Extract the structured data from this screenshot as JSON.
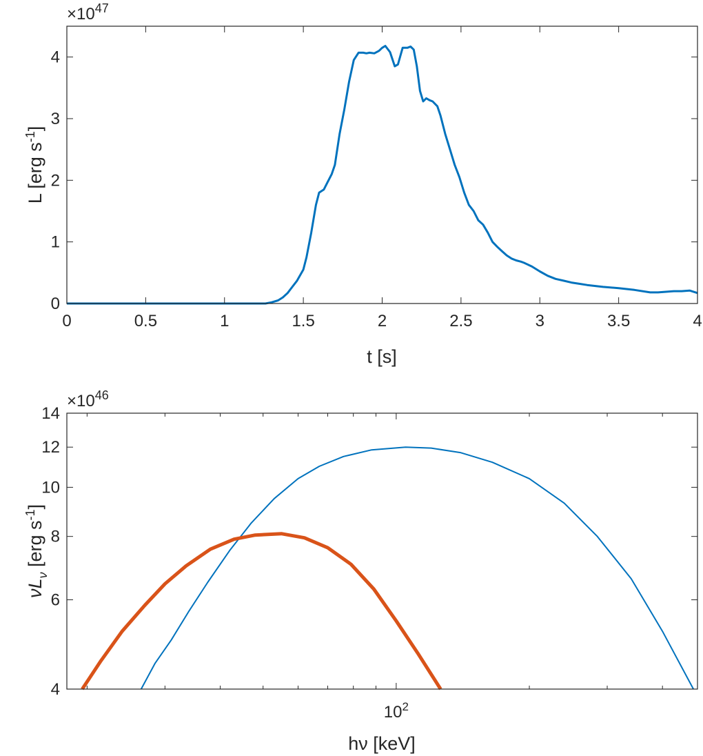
{
  "chart_data": [
    {
      "type": "line",
      "xlabel": "t [s]",
      "ylabel": "L [erg s",
      "ylabel_sup": "-1",
      "ylabel_end": "]",
      "exponent_base": "×10",
      "exponent_power": "47",
      "xlim": [
        0,
        4
      ],
      "ylim": [
        0,
        4.5
      ],
      "x_ticks": [
        0,
        0.5,
        1,
        1.5,
        2,
        2.5,
        3,
        3.5,
        4
      ],
      "x_tick_labels": [
        "0",
        "0.5",
        "1",
        "1.5",
        "2",
        "2.5",
        "3",
        "3.5",
        "4"
      ],
      "y_ticks": [
        0,
        1,
        2,
        3,
        4
      ],
      "y_tick_labels": [
        "0",
        "1",
        "2",
        "3",
        "4"
      ],
      "grid": false,
      "series": [
        {
          "color": "#0072BD",
          "x": [
            0,
            0.5,
            1.0,
            1.2,
            1.26,
            1.3,
            1.34,
            1.37,
            1.4,
            1.43,
            1.46,
            1.5,
            1.52,
            1.55,
            1.58,
            1.6,
            1.63,
            1.65,
            1.68,
            1.7,
            1.73,
            1.76,
            1.79,
            1.82,
            1.85,
            1.88,
            1.9,
            1.92,
            1.95,
            1.98,
            2.0,
            2.02,
            2.05,
            2.08,
            2.1,
            2.13,
            2.16,
            2.18,
            2.2,
            2.22,
            2.24,
            2.26,
            2.28,
            2.3,
            2.32,
            2.35,
            2.37,
            2.4,
            2.43,
            2.46,
            2.49,
            2.52,
            2.55,
            2.58,
            2.61,
            2.64,
            2.67,
            2.7,
            2.73,
            2.76,
            2.79,
            2.82,
            2.85,
            2.88,
            2.9,
            2.95,
            3.0,
            3.05,
            3.1,
            3.15,
            3.2,
            3.25,
            3.3,
            3.4,
            3.5,
            3.6,
            3.7,
            3.75,
            3.8,
            3.85,
            3.9,
            3.95,
            4.0
          ],
          "y": [
            0,
            0,
            0,
            0,
            0,
            0.02,
            0.05,
            0.1,
            0.17,
            0.27,
            0.37,
            0.55,
            0.75,
            1.15,
            1.6,
            1.8,
            1.85,
            1.95,
            2.1,
            2.25,
            2.75,
            3.15,
            3.6,
            3.95,
            4.07,
            4.07,
            4.06,
            4.07,
            4.06,
            4.1,
            4.15,
            4.18,
            4.08,
            3.85,
            3.88,
            4.15,
            4.15,
            4.17,
            4.12,
            3.85,
            3.45,
            3.28,
            3.33,
            3.3,
            3.28,
            3.2,
            3.05,
            2.75,
            2.5,
            2.25,
            2.05,
            1.8,
            1.6,
            1.5,
            1.35,
            1.28,
            1.15,
            1.0,
            0.92,
            0.85,
            0.78,
            0.73,
            0.7,
            0.68,
            0.66,
            0.6,
            0.52,
            0.45,
            0.4,
            0.37,
            0.34,
            0.32,
            0.3,
            0.27,
            0.25,
            0.22,
            0.18,
            0.18,
            0.19,
            0.2,
            0.2,
            0.21,
            0.17
          ]
        }
      ]
    },
    {
      "type": "line",
      "xlabel": "hν [keV]",
      "ylabel": "νL",
      "ylabel_sub": "ν",
      "ylabel_mid": " [erg s",
      "ylabel_sup": "-1",
      "ylabel_end": "]",
      "exponent_base": "×10",
      "exponent_power": "46",
      "x_scale": "log",
      "y_scale": "log",
      "xlim": [
        18,
        480
      ],
      "ylim": [
        4,
        14
      ],
      "x_tick_base": "10",
      "x_tick_power": "2",
      "x_major_tick": 100,
      "x_minor_ticks": [
        20,
        30,
        40,
        50,
        60,
        70,
        80,
        90,
        200,
        300,
        400
      ],
      "y_ticks": [
        4,
        6,
        8,
        10,
        12,
        14
      ],
      "y_tick_labels": [
        "4",
        "6",
        "8",
        "10",
        "12",
        "14"
      ],
      "grid": false,
      "series": [
        {
          "color": "#0072BD",
          "width": "thin",
          "x": [
            26.5,
            28.5,
            31,
            34,
            37.5,
            42,
            47,
            53,
            60,
            67,
            76,
            88,
            105,
            120,
            140,
            165,
            200,
            240,
            285,
            340,
            400,
            470
          ],
          "y": [
            4.0,
            4.5,
            5.0,
            5.7,
            6.5,
            7.5,
            8.5,
            9.5,
            10.4,
            11.0,
            11.5,
            11.85,
            12.0,
            11.95,
            11.7,
            11.2,
            10.4,
            9.3,
            8.0,
            6.6,
            5.2,
            4.0
          ]
        },
        {
          "color": "#D95319",
          "width": "thick",
          "x": [
            19.5,
            21.5,
            24,
            27,
            30,
            33.5,
            38,
            43,
            48,
            55,
            62,
            70,
            79,
            89,
            100,
            112,
            126
          ],
          "y": [
            4.0,
            4.55,
            5.2,
            5.85,
            6.45,
            7.0,
            7.55,
            7.9,
            8.05,
            8.1,
            7.95,
            7.6,
            7.05,
            6.3,
            5.45,
            4.7,
            4.0
          ]
        }
      ]
    }
  ]
}
